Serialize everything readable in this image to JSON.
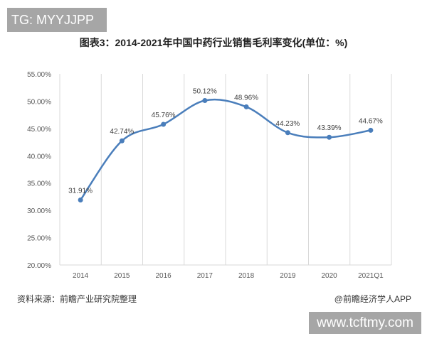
{
  "watermark_top": "TG: MYYJJPP",
  "watermark_bottom": "www.tcftmy.com",
  "source": "资料来源：前瞻产业研究院整理",
  "credit": "@前瞻经济学人APP",
  "chart_data": {
    "type": "line",
    "title": "图表3：2014-2021年中国中药行业销售毛利率变化(单位：%)",
    "categories": [
      "2014",
      "2015",
      "2016",
      "2017",
      "2018",
      "2019",
      "2020",
      "2021Q1"
    ],
    "series": [
      {
        "values": [
          31.91,
          42.74,
          45.76,
          50.12,
          48.96,
          44.23,
          43.39,
          44.67
        ]
      }
    ],
    "data_labels": [
      "31.91%",
      "42.74%",
      "45.76%",
      "50.12%",
      "48.96%",
      "44.23%",
      "43.39%",
      "44.67%"
    ],
    "ylim": [
      20,
      55
    ],
    "yticks": [
      "20.00%",
      "25.00%",
      "30.00%",
      "35.00%",
      "40.00%",
      "45.00%",
      "50.00%",
      "55.00%"
    ],
    "smooth": true,
    "grid": "vertical",
    "line_color": "#4a7ebb"
  }
}
